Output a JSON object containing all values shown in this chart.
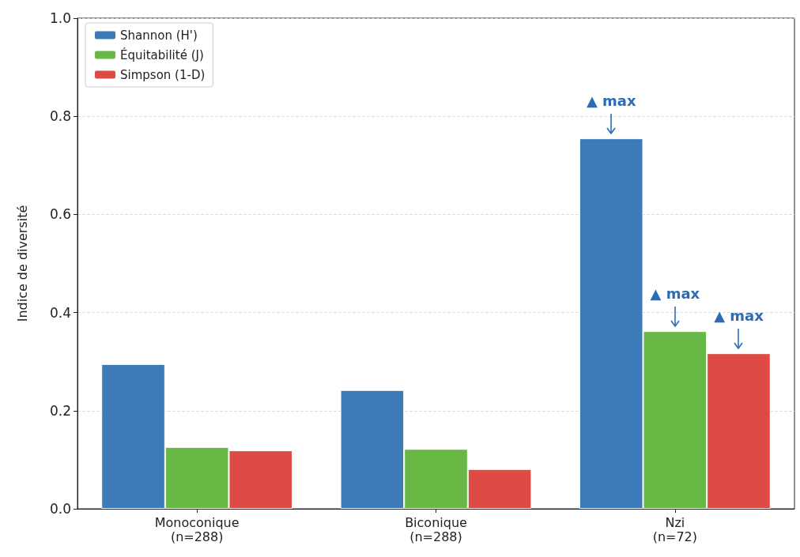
{
  "chart_data": {
    "type": "bar",
    "ylabel": "Indice de diversité",
    "categories": [
      "Monoconique\n(n=288)",
      "Biconique\n(n=288)",
      "Nzi\n(n=72)"
    ],
    "series": [
      {
        "name": "Shannon (H')",
        "color": "#3d7ab8",
        "values": [
          0.295,
          0.242,
          0.755
        ]
      },
      {
        "name": "Équitabilité (J)",
        "color": "#67b844",
        "values": [
          0.126,
          0.122,
          0.362
        ]
      },
      {
        "name": "Simpson (1-D)",
        "color": "#de4b45",
        "values": [
          0.119,
          0.081,
          0.317
        ]
      }
    ],
    "ylim": [
      0,
      1
    ],
    "yticks": [
      {
        "value": 0,
        "label": "0.0"
      },
      {
        "value": 0.2,
        "label": "0.2"
      },
      {
        "value": 0.4,
        "label": "0.4"
      },
      {
        "value": 0.6,
        "label": "0.6"
      },
      {
        "value": 0.8,
        "label": "0.8"
      },
      {
        "value": 1,
        "label": "1.0"
      }
    ],
    "grid": "y",
    "legend": "top left",
    "annotations": [
      "▲ max",
      "▲ max",
      "▲ max"
    ]
  }
}
